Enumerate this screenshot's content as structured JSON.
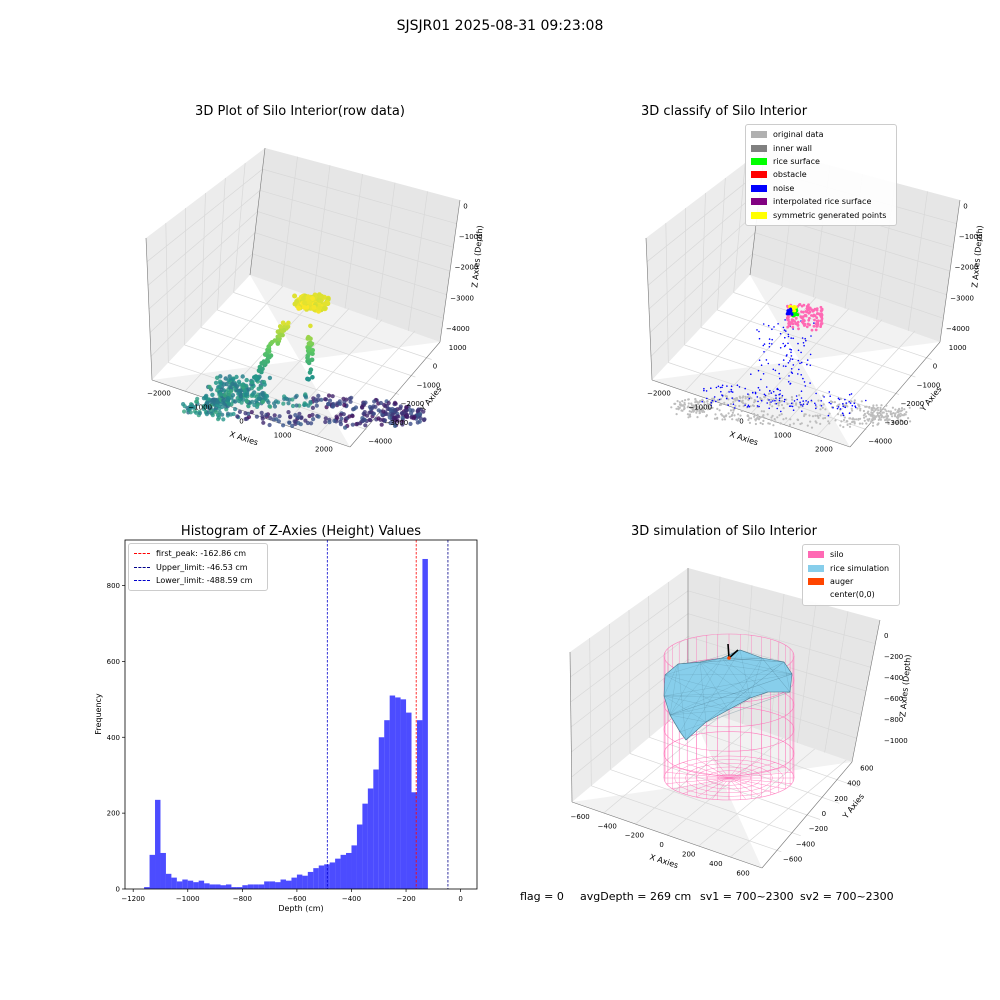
{
  "figure": {
    "title": "SJSJR01 2025-08-31 09:23:08"
  },
  "chart_data": [
    {
      "type": "scatter",
      "title": "3D Plot of Silo Interior(row data)",
      "xlabel": "X Axies",
      "ylabel": "Y Axies",
      "zlabel": "Z Axies (Depth)",
      "x_ticks": [
        "−2000",
        "−1000",
        "0",
        "1000",
        "2000"
      ],
      "y_ticks": [
        "1000",
        "0",
        "−1000",
        "−2000",
        "−3000",
        "−4000"
      ],
      "z_ticks": [
        "0",
        "−1000",
        "−2000",
        "−3000",
        "−4000"
      ],
      "xlim": [
        -2200,
        2400
      ],
      "ylim": [
        -4200,
        1400
      ],
      "zlim": [
        -4600,
        100
      ],
      "colormap": "viridis",
      "grid": true
    },
    {
      "type": "scatter",
      "title": "3D classify of Silo Interior",
      "xlabel": "X Axies",
      "ylabel": "Y Axies",
      "zlabel": "Z Axies (Depth)",
      "x_ticks": [
        "−2000",
        "−1000",
        "0",
        "1000",
        "2000"
      ],
      "y_ticks": [
        "1000",
        "0",
        "−1000",
        "−2000",
        "−3000",
        "−4000"
      ],
      "z_ticks": [
        "0",
        "−1000",
        "−2000",
        "−3000",
        "−4000"
      ],
      "xlim": [
        -2200,
        2400
      ],
      "ylim": [
        -4200,
        1400
      ],
      "zlim": [
        -4600,
        100
      ],
      "legend_position": "top-right",
      "legend": [
        {
          "label": "original data",
          "color": "#b0b0b0"
        },
        {
          "label": "inner wall",
          "color": "#808080"
        },
        {
          "label": "rice surface",
          "color": "#00ff00"
        },
        {
          "label": "obstacle",
          "color": "#ff0000"
        },
        {
          "label": "noise",
          "color": "#0000ff"
        },
        {
          "label": "interpolated rice surface",
          "color": "#800080"
        },
        {
          "label": "symmetric generated points",
          "color": "#ffff00"
        }
      ],
      "grid": true
    },
    {
      "type": "bar",
      "title": "Histogram of Z-Axies (Height) Values",
      "xlabel": "Depth (cm)",
      "ylabel": "Frequency",
      "bar_color": "#0000ff",
      "bin_width": 20,
      "bins_start": [
        -1160,
        -1140,
        -1120,
        -1100,
        -1080,
        -1060,
        -1040,
        -1020,
        -1000,
        -980,
        -960,
        -940,
        -920,
        -900,
        -880,
        -860,
        -840,
        -820,
        -800,
        -780,
        -760,
        -740,
        -720,
        -700,
        -680,
        -660,
        -640,
        -620,
        -600,
        -580,
        -560,
        -540,
        -520,
        -500,
        -480,
        -460,
        -440,
        -420,
        -400,
        -380,
        -360,
        -340,
        -320,
        -300,
        -280,
        -260,
        -240,
        -220,
        -200,
        -180,
        -160,
        -140,
        -120,
        -100,
        -80,
        -60,
        -40,
        -20,
        0
      ],
      "values": [
        5,
        90,
        235,
        95,
        40,
        30,
        20,
        25,
        22,
        18,
        22,
        15,
        12,
        12,
        10,
        12,
        5,
        5,
        10,
        12,
        12,
        12,
        20,
        20,
        18,
        25,
        22,
        30,
        38,
        35,
        45,
        55,
        62,
        65,
        70,
        80,
        90,
        95,
        115,
        170,
        225,
        265,
        315,
        400,
        445,
        510,
        505,
        500,
        465,
        255,
        445,
        870,
        0,
        0,
        0,
        0,
        0,
        0,
        0
      ],
      "xlim": [
        -1230,
        60
      ],
      "ylim": [
        0,
        920
      ],
      "x_ticks": [
        -1200,
        -1000,
        -800,
        -600,
        -400,
        -200,
        0
      ],
      "x_tick_labels": [
        "−1200",
        "−1000",
        "−800",
        "−600",
        "−400",
        "−200",
        "0"
      ],
      "y_ticks": [
        0,
        200,
        400,
        600,
        800
      ],
      "vlines": [
        {
          "label": "first_peak: -162.86 cm",
          "x": -162.86,
          "color": "#ff0000"
        },
        {
          "label": "Upper_limit: -46.53 cm",
          "x": -46.53,
          "color": "#00008b"
        },
        {
          "label": "Lower_limit: -488.59 cm",
          "x": -488.59,
          "color": "#0000cd"
        }
      ],
      "legend_position": "top-left",
      "grid": false
    },
    {
      "type": "scatter",
      "title": "3D simulation of Silo Interior",
      "xlabel": "X Axies",
      "ylabel": "Y Axies",
      "zlabel": "Z Axies (Depth)",
      "x_ticks": [
        "−600",
        "−400",
        "−200",
        "0",
        "200",
        "400",
        "600"
      ],
      "y_ticks": [
        "600",
        "400",
        "200",
        "0",
        "−200",
        "−400",
        "−600"
      ],
      "z_ticks": [
        "0",
        "−200",
        "−400",
        "−600",
        "−800",
        "−1000"
      ],
      "legend_position": "top-right",
      "legend": [
        {
          "label": "silo",
          "color": "#ff69b4"
        },
        {
          "label": "rice simulation",
          "color": "#87ceeb"
        },
        {
          "label": "auger",
          "color": "#ff4500"
        },
        {
          "label": "center(0,0)",
          "color": "#ffffff"
        }
      ],
      "grid": true
    }
  ],
  "footer": {
    "flag": "flag = 0",
    "avg_depth": "avgDepth = 269 cm",
    "sv1": "sv1 = 700~2300",
    "sv2": "sv2 = 700~2300"
  }
}
